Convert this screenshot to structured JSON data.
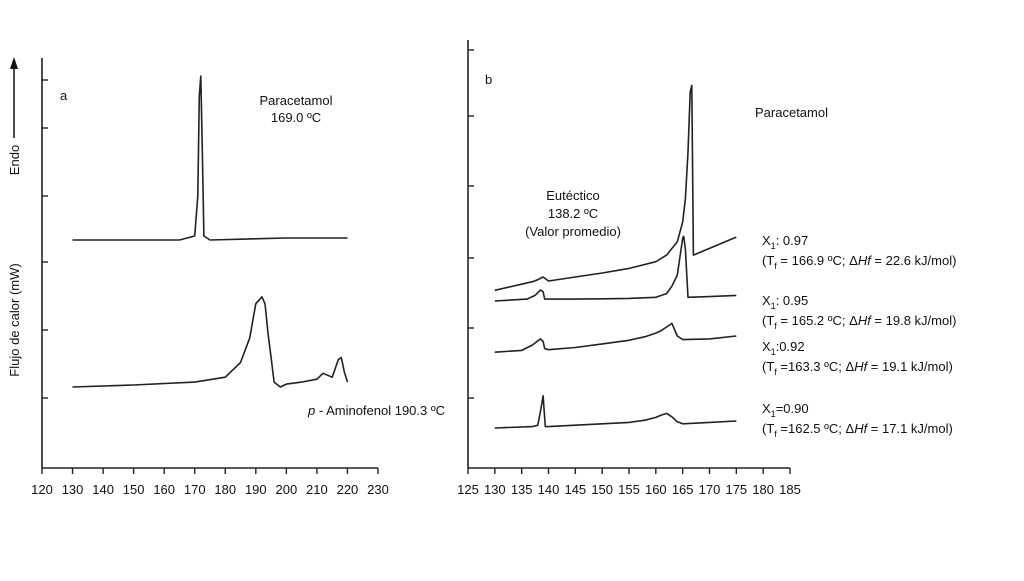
{
  "y_axis_label": "Flujo de calor (mW)",
  "endo_label": "Endo",
  "chart_data": [
    {
      "type": "line",
      "panel_label": "a",
      "x_ticks": [
        120,
        130,
        140,
        150,
        160,
        170,
        180,
        190,
        200,
        210,
        220,
        230
      ],
      "xlim": [
        120,
        230
      ],
      "series": [
        {
          "name": "Paracetamol",
          "x": [
            130,
            150,
            165,
            170,
            171,
            171.5,
            172,
            172.5,
            173,
            175,
            200,
            220
          ],
          "y": [
            0.28,
            0.28,
            0.28,
            0.3,
            0.5,
            1.0,
            1.1,
            0.7,
            0.3,
            0.28,
            0.29,
            0.29
          ]
        },
        {
          "name": "p - Aminofenol",
          "x": [
            130,
            150,
            170,
            180,
            185,
            188,
            190,
            192,
            193,
            194,
            195,
            196,
            198,
            200,
            205,
            210,
            212,
            215,
            217,
            218,
            219,
            220
          ],
          "y": [
            0.0,
            0.02,
            0.05,
            0.1,
            0.25,
            0.5,
            0.85,
            0.92,
            0.85,
            0.55,
            0.3,
            0.05,
            0.0,
            0.03,
            0.05,
            0.08,
            0.14,
            0.1,
            0.28,
            0.3,
            0.15,
            0.05
          ]
        }
      ],
      "annotations": [
        {
          "id": "paracetamol",
          "lines": [
            "Paracetamol",
            "169.0 ºC"
          ]
        },
        {
          "id": "aminofenol",
          "prefix": "p",
          "text": " - Aminofenol 190.3 ºC"
        }
      ]
    },
    {
      "type": "line",
      "panel_label": "b",
      "x_ticks": [
        125,
        130,
        135,
        140,
        145,
        150,
        155,
        160,
        165,
        170,
        175,
        180,
        185
      ],
      "xlim": [
        125,
        185
      ],
      "series": [
        {
          "name": "X1: 0.97",
          "x": [
            130,
            137,
            138,
            139,
            140,
            145,
            150,
            155,
            160,
            162,
            164,
            165,
            165.5,
            166,
            166.4,
            166.7,
            167,
            170,
            175
          ],
          "y": [
            1.92,
            2.05,
            2.08,
            2.12,
            2.06,
            2.12,
            2.18,
            2.25,
            2.35,
            2.45,
            2.65,
            2.95,
            3.3,
            4.0,
            4.9,
            5.0,
            2.45,
            2.55,
            2.72
          ]
        },
        {
          "name": "X1: 0.95",
          "x": [
            130,
            136,
            137.5,
            138.5,
            139,
            139.3,
            140,
            145,
            150,
            155,
            160,
            162,
            163,
            164,
            164.5,
            165,
            165.2,
            165.5,
            166,
            170,
            175
          ],
          "y": [
            1.0,
            1.05,
            1.15,
            1.3,
            1.25,
            1.05,
            1.05,
            1.05,
            1.06,
            1.07,
            1.1,
            1.2,
            1.4,
            1.7,
            2.2,
            2.7,
            2.75,
            2.4,
            1.1,
            1.12,
            1.15
          ]
        },
        {
          "name": "X1:0.92",
          "x": [
            130,
            135,
            137,
            138.5,
            139,
            139.3,
            140,
            145,
            150,
            155,
            158,
            160,
            161,
            162,
            163,
            164,
            165,
            170,
            175
          ],
          "y": [
            0.55,
            0.6,
            0.75,
            0.92,
            0.85,
            0.65,
            0.62,
            0.68,
            0.78,
            0.88,
            0.98,
            1.08,
            1.15,
            1.25,
            1.35,
            1.0,
            0.9,
            0.92,
            1.0
          ]
        },
        {
          "name": "X1=0.90",
          "x": [
            130,
            137,
            138,
            138.6,
            139,
            139.4,
            140,
            145,
            150,
            155,
            158,
            160,
            161,
            162,
            163,
            164,
            165,
            170,
            175
          ],
          "y": [
            0.0,
            0.05,
            0.1,
            0.7,
            1.15,
            0.05,
            0.05,
            0.1,
            0.15,
            0.2,
            0.28,
            0.38,
            0.46,
            0.52,
            0.4,
            0.22,
            0.15,
            0.2,
            0.25
          ]
        }
      ],
      "annotations": [
        {
          "id": "paracetamol",
          "lines": [
            "Paracetamol"
          ]
        },
        {
          "id": "eutectico",
          "lines": [
            "Eutéctico",
            "138.2 ºC",
            "(Valor promedio)"
          ]
        }
      ],
      "series_labels": [
        {
          "x_label": "X1: 0.97",
          "detail": [
            "(T",
            "f",
            " = 166.9 ºC; Δ",
            "Hf",
            " = 22.6 kJ/mol)"
          ]
        },
        {
          "x_label": "X1: 0.95",
          "detail": [
            "(T",
            "f",
            " = 165.2 ºC; Δ",
            "Hf",
            " = 19.8 kJ/mol)"
          ]
        },
        {
          "x_label": "X1:0.92",
          "detail": [
            "(T",
            "f",
            " =163.3 ºC; Δ",
            "Hf",
            " = 19.1 kJ/mol)"
          ]
        },
        {
          "x_label": "X1=0.90",
          "detail": [
            "(T",
            "f",
            " =162.5 ºC; Δ",
            "Hf",
            " = 17.1 kJ/mol)"
          ]
        }
      ]
    }
  ]
}
